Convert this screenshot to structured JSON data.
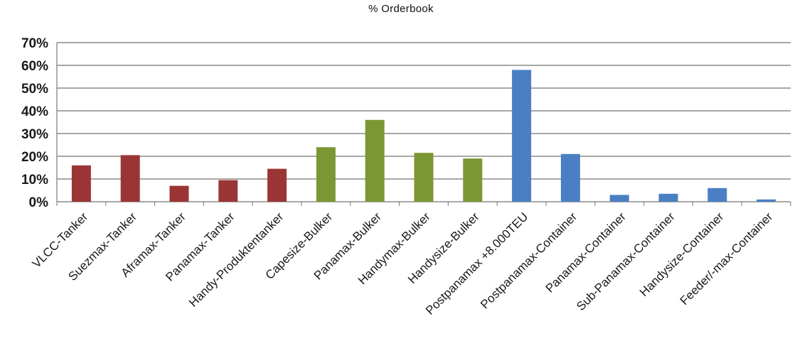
{
  "chart_data": {
    "type": "bar",
    "title": "% Orderbook",
    "xlabel": "",
    "ylabel": "",
    "ylim": [
      0,
      70
    ],
    "yticks": [
      "0%",
      "10%",
      "20%",
      "30%",
      "40%",
      "50%",
      "60%",
      "70%"
    ],
    "grid": true,
    "legend": "none",
    "categories": [
      "VLCC-Tanker",
      "Suezmax-Tanker",
      "Aframax-Tanker",
      "Panamax-Tanker",
      "Handy-Produktentanker",
      "Capesize-Bulker",
      "Panamax-Bulker",
      "Handymax-Bulker",
      "Handysize-Bulker",
      "Postpanamax +8.000TEU",
      "Postpanamax-Container",
      "Panamax-Container",
      "Sub-Panamax-Container",
      "Handysize-Container",
      "Feeder/-max-Container"
    ],
    "values": [
      16,
      20.5,
      7,
      9.5,
      14.5,
      24,
      36,
      21.5,
      19,
      58,
      21,
      3,
      3.5,
      6,
      1
    ],
    "colors": [
      "#9b3535",
      "#9b3535",
      "#9b3535",
      "#9b3535",
      "#9b3535",
      "#7b9733",
      "#7b9733",
      "#7b9733",
      "#7b9733",
      "#4a7fc3",
      "#4a7fc3",
      "#4a7fc3",
      "#4a7fc3",
      "#4a7fc3",
      "#4a7fc3"
    ],
    "palette": {
      "tanker": "#9b3535",
      "bulker": "#7b9733",
      "container": "#4a7fc3"
    }
  }
}
